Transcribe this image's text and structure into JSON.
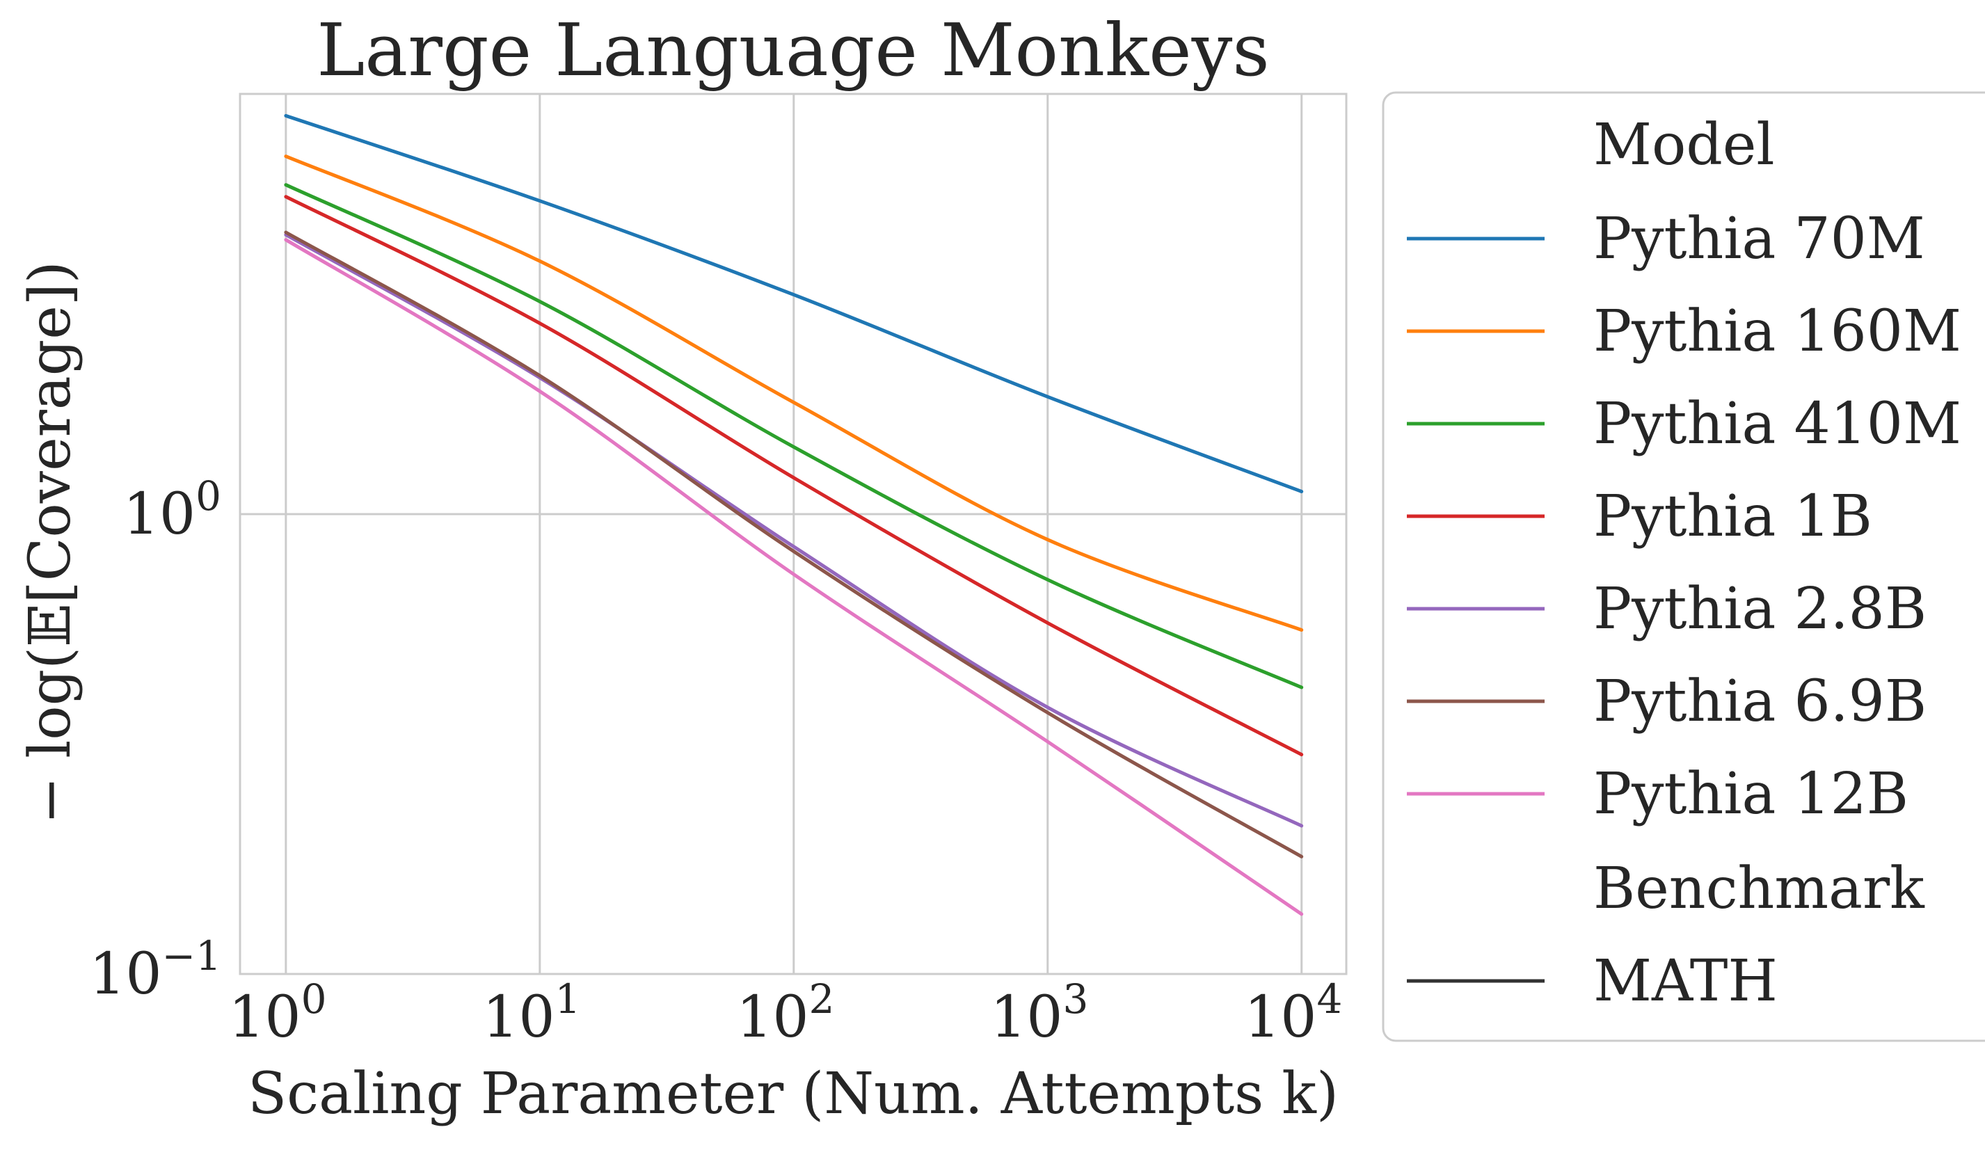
{
  "chart_data": {
    "type": "line",
    "title": "Large Language Monkeys",
    "xlabel": "Scaling Parameter (Num. Attempts k)",
    "ylabel": "− log(𝔼[Coverage])",
    "x_scale": "log",
    "y_scale": "log",
    "xlim": [
      0.66,
      15000
    ],
    "ylim": [
      0.1,
      8.2
    ],
    "grid": true,
    "legend_location": "outside-right",
    "x_ticks": [
      {
        "base": "10",
        "exp": "0",
        "value": 1
      },
      {
        "base": "10",
        "exp": "1",
        "value": 10
      },
      {
        "base": "10",
        "exp": "2",
        "value": 100
      },
      {
        "base": "10",
        "exp": "3",
        "value": 1000
      },
      {
        "base": "10",
        "exp": "4",
        "value": 10000
      }
    ],
    "y_ticks": [
      {
        "base": "10",
        "exp": "−1",
        "value": 0.1
      },
      {
        "base": "10",
        "exp": "0",
        "value": 1
      }
    ],
    "legend": {
      "model_header": "Model",
      "benchmark_header": "Benchmark",
      "benchmark_entry": {
        "name": "MATH",
        "color": "#333333"
      }
    },
    "x": [
      1,
      10,
      100,
      1000,
      10000
    ],
    "series": [
      {
        "name": "Pythia 70M",
        "color": "#1f77b4",
        "values": [
          7.35,
          4.8,
          3.0,
          1.8,
          1.12
        ]
      },
      {
        "name": "Pythia 160M",
        "color": "#ff7f0e",
        "values": [
          6.0,
          3.55,
          1.75,
          0.88,
          0.56
        ]
      },
      {
        "name": "Pythia 410M",
        "color": "#2ca02c",
        "values": [
          5.2,
          2.9,
          1.4,
          0.72,
          0.42
        ]
      },
      {
        "name": "Pythia 1B",
        "color": "#d62728",
        "values": [
          4.9,
          2.6,
          1.2,
          0.58,
          0.3
        ]
      },
      {
        "name": "Pythia 2.8B",
        "color": "#9467bd",
        "values": [
          4.05,
          1.98,
          0.85,
          0.38,
          0.21
        ]
      },
      {
        "name": "Pythia 6.9B",
        "color": "#8c564b",
        "values": [
          4.1,
          2.0,
          0.83,
          0.37,
          0.18
        ]
      },
      {
        "name": "Pythia 12B",
        "color": "#e377c2",
        "values": [
          3.95,
          1.85,
          0.74,
          0.32,
          0.135
        ]
      }
    ]
  }
}
